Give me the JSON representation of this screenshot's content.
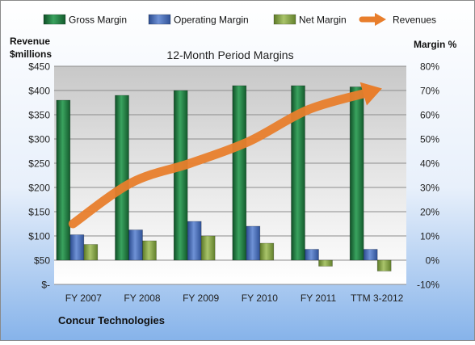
{
  "chart_data": {
    "type": "bar",
    "title": "12-Month Period Margins",
    "company": "Concur Technologies",
    "y_left_label_line1": "Revenue",
    "y_left_label_line2": "$millions",
    "y_right_label": "Margin %",
    "categories": [
      "FY 2007",
      "FY 2008",
      "FY 2009",
      "FY 2010",
      "FY 2011",
      "TTM 3-2012"
    ],
    "y_left_ticks": [
      "$-",
      "$50",
      "$100",
      "$150",
      "$200",
      "$250",
      "$300",
      "$350",
      "$400",
      "$450"
    ],
    "y_right_ticks": [
      "-10%",
      "0%",
      "10%",
      "20%",
      "30%",
      "40%",
      "50%",
      "60%",
      "70%",
      "80%"
    ],
    "y_right_range": [
      -10,
      80
    ],
    "y_left_range": [
      0,
      450
    ],
    "margin_series": [
      {
        "name": "Gross Margin",
        "color": "#1f7a3f",
        "values": [
          66,
          68,
          70,
          72,
          72,
          71.5
        ]
      },
      {
        "name": "Operating Margin",
        "color": "#3f63b0",
        "values": [
          10.5,
          12.5,
          16,
          14,
          4.5,
          4.5
        ]
      },
      {
        "name": "Net Margin",
        "color": "#7f9f3c",
        "values": [
          6.5,
          8,
          10,
          7,
          -2.5,
          -4.5
        ]
      }
    ],
    "revenue_series": {
      "name": "Revenues",
      "color": "#e87e2c",
      "values": [
        125,
        210,
        250,
        295,
        360,
        395
      ]
    },
    "legend_position": "top",
    "grid": true
  }
}
